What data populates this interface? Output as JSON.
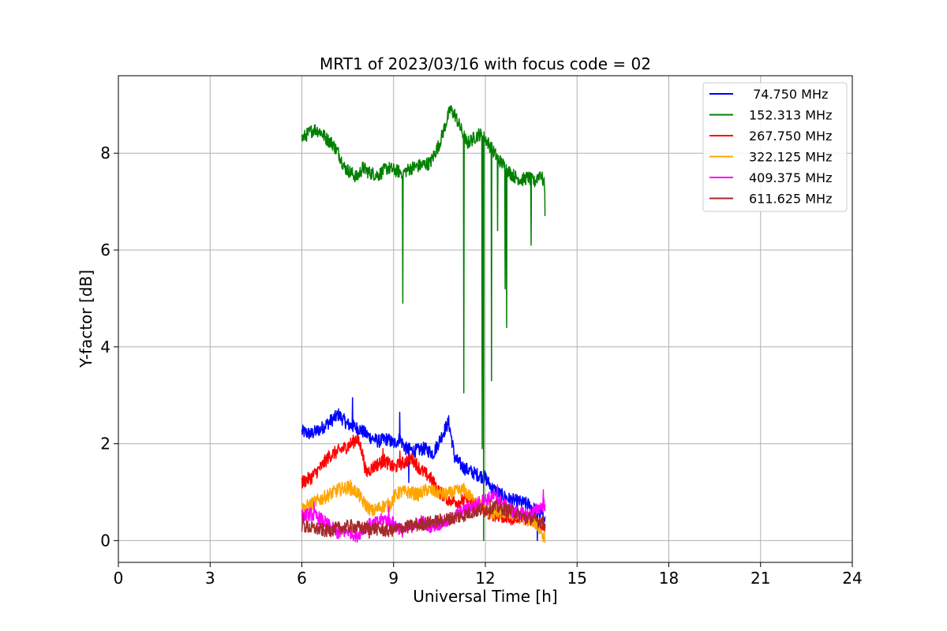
{
  "chart_data": {
    "type": "line",
    "title": "MRT1 of 2023/03/16 with focus code = 02",
    "xlabel": "Universal Time [h]",
    "ylabel": "Y-factor [dB]",
    "xlim": [
      0,
      24
    ],
    "ylim": [
      -0.45,
      9.6
    ],
    "xticks": [
      0,
      3,
      6,
      9,
      12,
      15,
      18,
      21,
      24
    ],
    "yticks": [
      0,
      2,
      4,
      6,
      8
    ],
    "grid": true,
    "legend_position": "top-right",
    "series": [
      {
        "name": " 74.750 MHz",
        "color": "#0000ff",
        "x": [
          6.0,
          6.3,
          6.6,
          6.9,
          7.2,
          7.5,
          7.7,
          7.9,
          8.2,
          8.5,
          8.8,
          9.0,
          9.2,
          9.4,
          9.7,
          10.0,
          10.3,
          10.6,
          10.8,
          10.9,
          11.0,
          11.3,
          11.6,
          11.8,
          12.0,
          12.2,
          12.5,
          12.8,
          13.1,
          13.4,
          13.7,
          13.95
        ],
        "y": [
          2.25,
          2.2,
          2.3,
          2.45,
          2.6,
          2.4,
          2.35,
          2.3,
          2.15,
          2.05,
          2.1,
          2.0,
          2.1,
          1.9,
          1.85,
          1.9,
          1.8,
          2.2,
          2.45,
          2.1,
          1.7,
          1.5,
          1.4,
          1.35,
          1.3,
          1.1,
          0.95,
          0.85,
          0.8,
          0.75,
          0.6,
          0.5
        ],
        "spikes": [
          [
            7.65,
            2.95
          ],
          [
            9.2,
            2.65
          ],
          [
            9.5,
            1.2
          ],
          [
            13.7,
            0.0
          ]
        ]
      },
      {
        "name": "152.313 MHz",
        "color": "#008000",
        "x": [
          6.0,
          6.2,
          6.4,
          6.6,
          6.8,
          7.0,
          7.2,
          7.4,
          7.6,
          7.8,
          8.0,
          8.2,
          8.5,
          8.8,
          9.0,
          9.3,
          9.6,
          9.9,
          10.2,
          10.5,
          10.7,
          10.85,
          11.0,
          11.2,
          11.4,
          11.6,
          11.8,
          12.0,
          12.2,
          12.4,
          12.6,
          12.8,
          13.0,
          13.2,
          13.4,
          13.6,
          13.8,
          13.95
        ],
        "y": [
          8.3,
          8.4,
          8.5,
          8.45,
          8.3,
          8.2,
          8.0,
          7.7,
          7.6,
          7.5,
          7.7,
          7.6,
          7.55,
          7.7,
          7.65,
          7.6,
          7.7,
          7.75,
          7.8,
          8.2,
          8.6,
          8.9,
          8.8,
          8.5,
          8.2,
          8.3,
          8.4,
          8.3,
          8.1,
          7.9,
          7.75,
          7.6,
          7.5,
          7.45,
          7.5,
          7.4,
          7.6,
          7.3
        ],
        "spikes": [
          [
            9.3,
            4.9
          ],
          [
            11.3,
            3.05
          ],
          [
            11.9,
            1.9
          ],
          [
            11.95,
            0.0
          ],
          [
            12.2,
            3.3
          ],
          [
            12.4,
            6.4
          ],
          [
            12.65,
            5.2
          ],
          [
            12.7,
            4.4
          ],
          [
            13.5,
            6.1
          ],
          [
            13.95,
            6.7
          ]
        ]
      },
      {
        "name": "267.750 MHz",
        "color": "#ff0000",
        "x": [
          6.0,
          6.3,
          6.6,
          6.9,
          7.2,
          7.5,
          7.8,
          7.95,
          8.1,
          8.4,
          8.7,
          9.0,
          9.3,
          9.6,
          9.9,
          10.2,
          10.5,
          10.8,
          11.1,
          11.4,
          11.7,
          12.0,
          12.2,
          12.5,
          12.8,
          13.1,
          13.4,
          13.7,
          13.95
        ],
        "y": [
          1.2,
          1.3,
          1.5,
          1.75,
          1.85,
          1.95,
          2.1,
          1.9,
          1.4,
          1.55,
          1.65,
          1.5,
          1.6,
          1.7,
          1.45,
          1.3,
          1.0,
          0.85,
          0.8,
          0.85,
          0.75,
          0.6,
          0.55,
          0.5,
          0.45,
          0.5,
          0.45,
          0.4,
          0.3
        ],
        "spikes": [
          [
            7.75,
            2.15
          ],
          [
            8.65,
            1.9
          ],
          [
            9.2,
            1.85
          ],
          [
            9.6,
            1.6
          ]
        ]
      },
      {
        "name": "322.125 MHz",
        "color": "#ffa500",
        "x": [
          6.0,
          6.3,
          6.6,
          6.9,
          7.2,
          7.5,
          7.8,
          8.0,
          8.3,
          8.6,
          8.9,
          9.0,
          9.2,
          9.5,
          9.8,
          10.1,
          10.4,
          10.7,
          11.0,
          11.3,
          11.5,
          11.8,
          12.1,
          12.4,
          12.7,
          13.0,
          13.3,
          13.6,
          13.95
        ],
        "y": [
          0.65,
          0.75,
          0.85,
          0.95,
          1.05,
          1.1,
          1.0,
          0.8,
          0.6,
          0.7,
          0.75,
          0.9,
          1.0,
          1.0,
          0.95,
          1.05,
          1.0,
          0.95,
          1.0,
          1.05,
          0.9,
          0.75,
          0.6,
          0.55,
          0.6,
          0.5,
          0.45,
          0.4,
          0.05
        ],
        "spikes": [
          [
            7.6,
            1.25
          ],
          [
            13.95,
            0.0
          ]
        ]
      },
      {
        "name": "409.375 MHz",
        "color": "#ff00ff",
        "x": [
          6.0,
          6.3,
          6.6,
          6.9,
          7.2,
          7.5,
          7.8,
          8.1,
          8.4,
          8.7,
          9.0,
          9.3,
          9.6,
          9.9,
          10.2,
          10.5,
          10.8,
          11.1,
          11.4,
          11.7,
          12.0,
          12.3,
          12.6,
          12.9,
          13.2,
          13.5,
          13.8,
          13.95
        ],
        "y": [
          0.5,
          0.55,
          0.45,
          0.3,
          0.15,
          0.2,
          0.1,
          0.3,
          0.35,
          0.45,
          0.35,
          0.2,
          0.3,
          0.4,
          0.3,
          0.35,
          0.4,
          0.55,
          0.65,
          0.75,
          0.85,
          0.9,
          0.75,
          0.6,
          0.55,
          0.55,
          0.7,
          0.75
        ],
        "spikes": [
          [
            6.4,
            0.8
          ],
          [
            8.85,
            0.7
          ],
          [
            12.4,
            1.15
          ],
          [
            13.9,
            1.05
          ]
        ]
      },
      {
        "name": "611.625 MHz",
        "color": "#a52a2a",
        "x": [
          6.0,
          6.4,
          6.8,
          7.2,
          7.6,
          8.0,
          8.4,
          8.8,
          9.2,
          9.6,
          10.0,
          10.4,
          10.8,
          11.2,
          11.6,
          12.0,
          12.3,
          12.6,
          12.9,
          13.2,
          13.5,
          13.8,
          13.95
        ],
        "y": [
          0.3,
          0.25,
          0.2,
          0.25,
          0.3,
          0.25,
          0.25,
          0.2,
          0.25,
          0.3,
          0.35,
          0.4,
          0.45,
          0.5,
          0.6,
          0.65,
          0.7,
          0.65,
          0.6,
          0.5,
          0.45,
          0.4,
          0.35
        ],
        "spikes": [
          [
            6.05,
            0.55
          ],
          [
            8.2,
            0.05
          ]
        ]
      }
    ]
  }
}
